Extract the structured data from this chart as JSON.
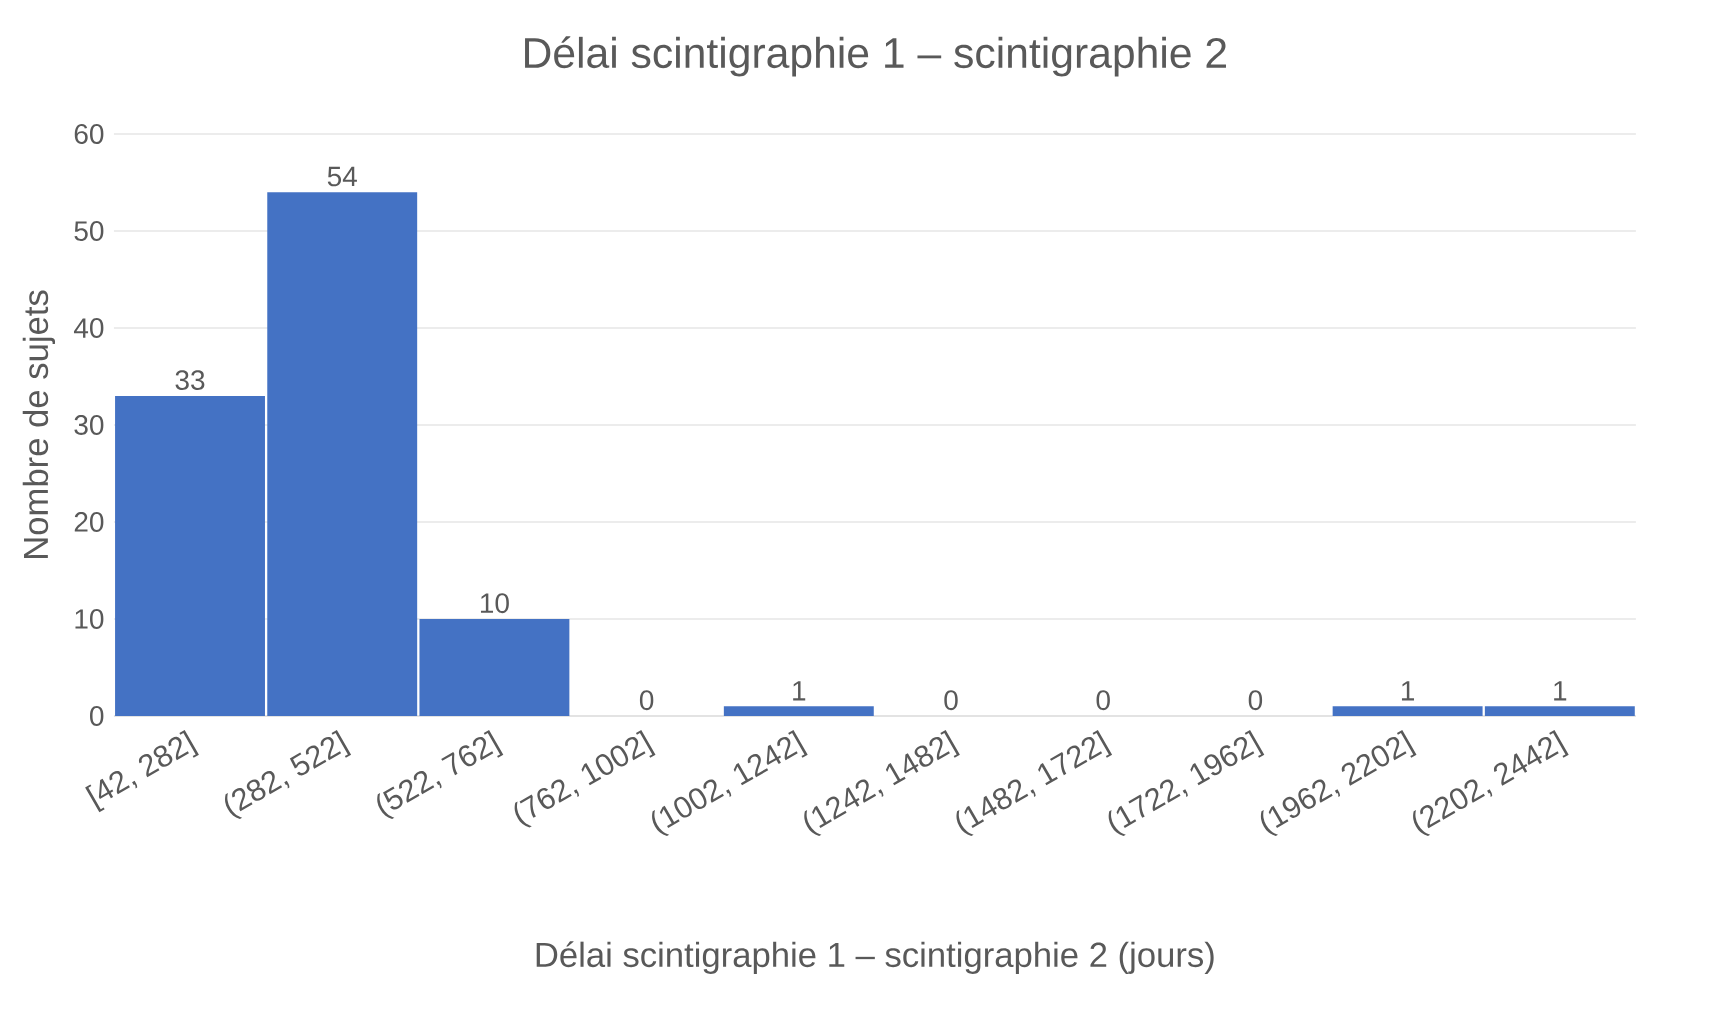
{
  "chart_data": {
    "type": "bar",
    "title": "Délai scintigraphie 1 – scintigraphie 2",
    "xlabel": "Délai scintigraphie 1 – scintigraphie 2 (jours)",
    "ylabel": "Nombre de sujets",
    "categories": [
      "[42, 282]",
      "(282, 522]",
      "(522, 762]",
      "(762, 1002]",
      "(1002, 1242]",
      "(1242, 1482]",
      "(1482, 1722]",
      "(1722, 1962]",
      "(1962, 2202]",
      "(2202, 2442]"
    ],
    "values": [
      33,
      54,
      10,
      0,
      1,
      0,
      0,
      0,
      1,
      1
    ],
    "color": "#4472c4",
    "ylim": [
      0,
      60
    ],
    "yticks": [
      0,
      10,
      20,
      30,
      40,
      50,
      60
    ],
    "grid": "y",
    "data_labels": true
  }
}
